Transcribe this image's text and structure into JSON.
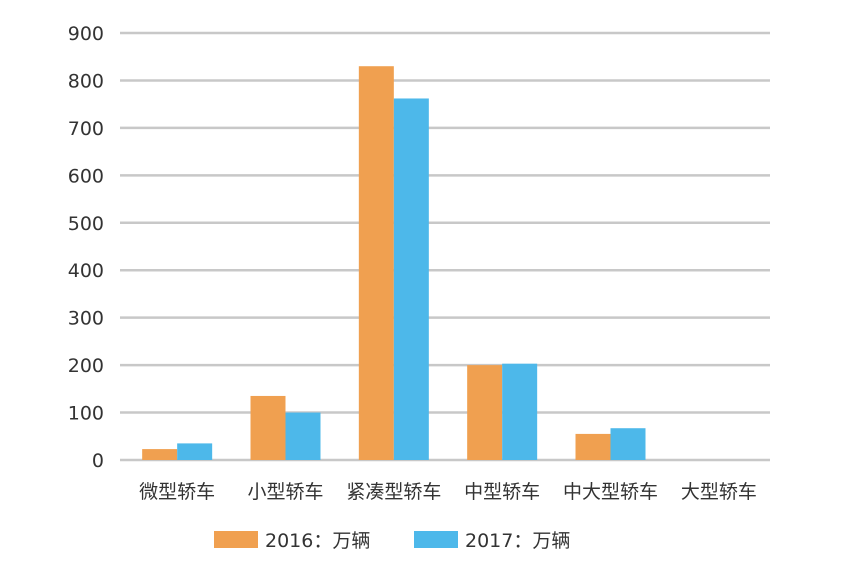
{
  "chart_data": {
    "type": "bar",
    "categories": [
      "微型轿车",
      "小型轿车",
      "紧凑型轿车",
      "中型轿车",
      "中大型轿车",
      "大型轿车"
    ],
    "series": [
      {
        "name": "2016：万辆",
        "color": "#F0A050",
        "values": [
          23,
          135,
          830,
          200,
          55,
          0
        ]
      },
      {
        "name": "2017：万辆",
        "color": "#4DB8EA",
        "values": [
          35,
          100,
          762,
          203,
          67,
          0
        ]
      }
    ],
    "ylim": [
      0,
      900
    ],
    "yticks": [
      0,
      100,
      200,
      300,
      400,
      500,
      600,
      700,
      800,
      900
    ],
    "grid": true,
    "legend_position": "bottom"
  }
}
